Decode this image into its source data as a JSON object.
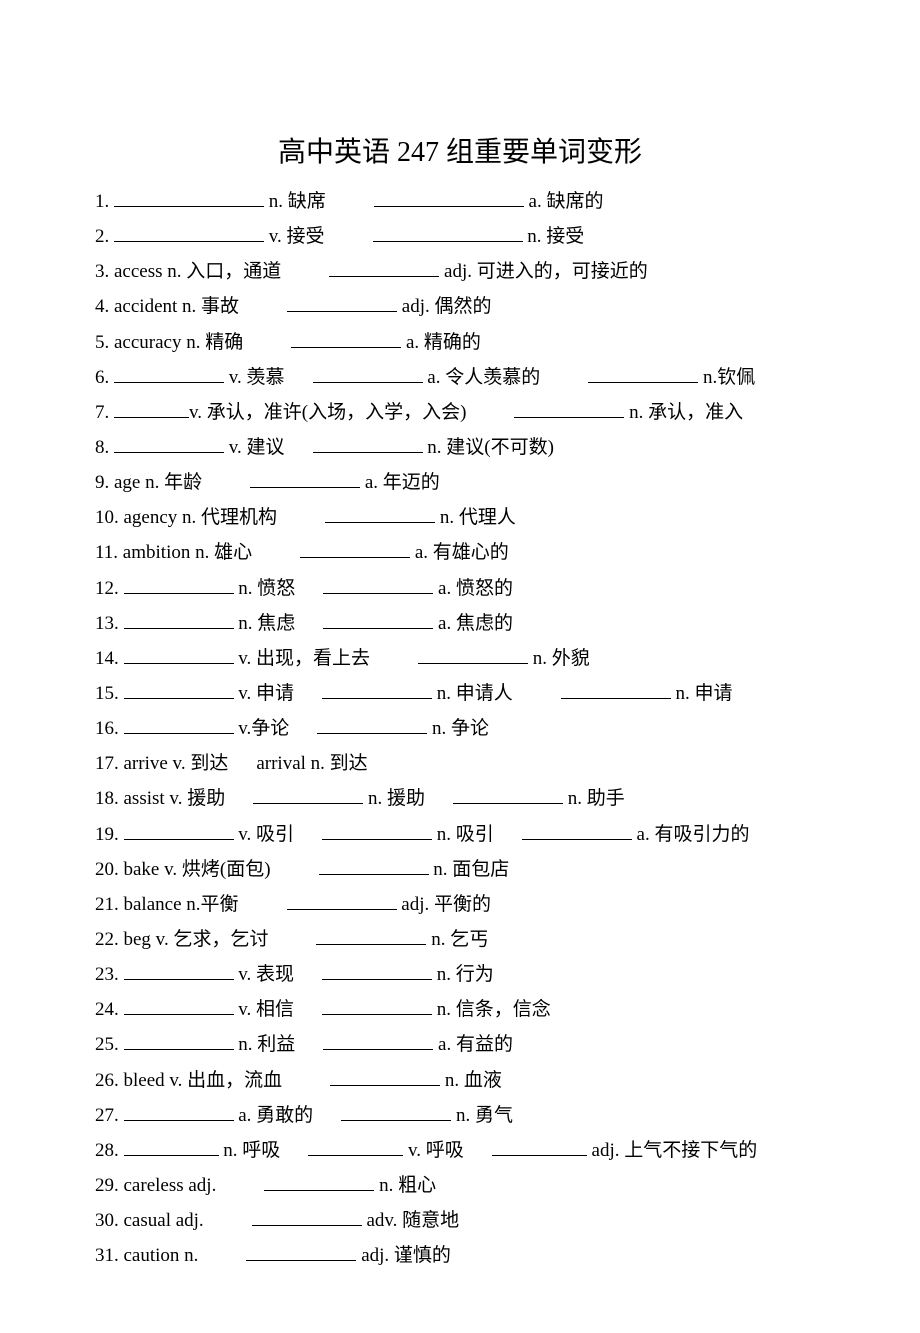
{
  "title": "高中英语 247 组重要单词变形",
  "lines": [
    {
      "num": "1.",
      "parts": [
        {
          "blank": "long"
        },
        {
          "t": " n. 缺席"
        },
        {
          "gap": "lg"
        },
        {
          "blank": "long"
        },
        {
          "t": " a. 缺席的"
        }
      ]
    },
    {
      "num": "2.",
      "parts": [
        {
          "blank": "long"
        },
        {
          "t": " v. 接受"
        },
        {
          "gap": "lg"
        },
        {
          "blank": "long"
        },
        {
          "t": " n. 接受"
        }
      ]
    },
    {
      "num": "3.",
      "parts": [
        {
          "t": "access n. 入口，通道"
        },
        {
          "gap": "lg"
        },
        {
          "blank": "med"
        },
        {
          "t": " adj. 可进入的，可接近的"
        }
      ]
    },
    {
      "num": "4.",
      "parts": [
        {
          "t": "accident n. 事故"
        },
        {
          "gap": "lg"
        },
        {
          "blank": "med"
        },
        {
          "t": " adj. 偶然的"
        }
      ]
    },
    {
      "num": "5.",
      "parts": [
        {
          "t": "accuracy n. 精确"
        },
        {
          "gap": "lg"
        },
        {
          "blank": "med"
        },
        {
          "t": " a. 精确的"
        }
      ]
    },
    {
      "num": "6.",
      "parts": [
        {
          "blank": "med"
        },
        {
          "t": " v. 羡慕"
        },
        {
          "gap": ""
        },
        {
          "blank": "med"
        },
        {
          "t": " a. 令人羡慕的"
        },
        {
          "gap": "lg"
        },
        {
          "blank": "med"
        },
        {
          "t": " n.钦佩"
        }
      ]
    },
    {
      "num": "7.",
      "parts": [
        {
          "blank": "xs"
        },
        {
          "t": "v. 承认，准许(入场，入学，入会)"
        },
        {
          "gap": "lg"
        },
        {
          "blank": "med"
        },
        {
          "t": " n. 承认，准入"
        }
      ]
    },
    {
      "num": "8.",
      "parts": [
        {
          "blank": "med"
        },
        {
          "t": " v. 建议"
        },
        {
          "gap": ""
        },
        {
          "blank": "med"
        },
        {
          "t": " n. 建议(不可数)"
        }
      ]
    },
    {
      "num": "9.",
      "parts": [
        {
          "t": "age n. 年龄"
        },
        {
          "gap": "lg"
        },
        {
          "blank": "med"
        },
        {
          "t": " a. 年迈的"
        }
      ]
    },
    {
      "num": "10.",
      "parts": [
        {
          "t": "agency n. 代理机构"
        },
        {
          "gap": "lg"
        },
        {
          "blank": "med"
        },
        {
          "t": " n. 代理人"
        }
      ]
    },
    {
      "num": "11.",
      "parts": [
        {
          "t": "ambition n. 雄心"
        },
        {
          "gap": "lg"
        },
        {
          "blank": "med"
        },
        {
          "t": " a. 有雄心的"
        }
      ]
    },
    {
      "num": "12.",
      "parts": [
        {
          "blank": "med"
        },
        {
          "t": " n. 愤怒"
        },
        {
          "gap": ""
        },
        {
          "blank": "med"
        },
        {
          "t": " a. 愤怒的"
        }
      ]
    },
    {
      "num": "13.",
      "parts": [
        {
          "blank": "med"
        },
        {
          "t": " n. 焦虑"
        },
        {
          "gap": ""
        },
        {
          "blank": "med"
        },
        {
          "t": " a. 焦虑的"
        }
      ]
    },
    {
      "num": "14.",
      "parts": [
        {
          "blank": "med"
        },
        {
          "t": " v. 出现，看上去"
        },
        {
          "gap": "lg"
        },
        {
          "blank": "med"
        },
        {
          "t": " n. 外貌"
        }
      ]
    },
    {
      "num": "15.",
      "parts": [
        {
          "blank": "med"
        },
        {
          "t": " v. 申请"
        },
        {
          "gap": ""
        },
        {
          "blank": "med"
        },
        {
          "t": " n. 申请人"
        },
        {
          "gap": "lg"
        },
        {
          "blank": "med"
        },
        {
          "t": " n. 申请"
        }
      ]
    },
    {
      "num": "16.",
      "parts": [
        {
          "blank": "med"
        },
        {
          "t": " v.争论"
        },
        {
          "gap": ""
        },
        {
          "blank": "med"
        },
        {
          "t": " n. 争论"
        }
      ]
    },
    {
      "num": "17.",
      "parts": [
        {
          "t": "arrive v. 到达"
        },
        {
          "gap": ""
        },
        {
          "t": "arrival n. 到达"
        }
      ]
    },
    {
      "num": "18.",
      "parts": [
        {
          "t": "assist v. 援助"
        },
        {
          "gap": ""
        },
        {
          "blank": "med"
        },
        {
          "t": " n. 援助"
        },
        {
          "gap": ""
        },
        {
          "blank": "med"
        },
        {
          "t": " n. 助手"
        }
      ]
    },
    {
      "num": "19.",
      "parts": [
        {
          "blank": "med"
        },
        {
          "t": " v. 吸引"
        },
        {
          "gap": ""
        },
        {
          "blank": "med"
        },
        {
          "t": " n. 吸引"
        },
        {
          "gap": ""
        },
        {
          "blank": "med"
        },
        {
          "t": " a. 有吸引力的"
        }
      ]
    },
    {
      "num": "20.",
      "parts": [
        {
          "t": "bake v. 烘烤(面包)"
        },
        {
          "gap": "lg"
        },
        {
          "blank": "med"
        },
        {
          "t": " n. 面包店"
        }
      ]
    },
    {
      "num": "21.",
      "parts": [
        {
          "t": "balance n.平衡"
        },
        {
          "gap": "lg"
        },
        {
          "blank": "med"
        },
        {
          "t": " adj. 平衡的"
        }
      ]
    },
    {
      "num": "22.",
      "parts": [
        {
          "t": "beg v. 乞求，乞讨"
        },
        {
          "gap": "lg"
        },
        {
          "blank": "med"
        },
        {
          "t": " n. 乞丐"
        }
      ]
    },
    {
      "num": "23.",
      "parts": [
        {
          "blank": "med"
        },
        {
          "t": " v. 表现"
        },
        {
          "gap": ""
        },
        {
          "blank": "med"
        },
        {
          "t": " n. 行为"
        }
      ]
    },
    {
      "num": "24.",
      "parts": [
        {
          "blank": "med"
        },
        {
          "t": " v. 相信"
        },
        {
          "gap": ""
        },
        {
          "blank": "med"
        },
        {
          "t": " n. 信条，信念"
        }
      ]
    },
    {
      "num": "25.",
      "parts": [
        {
          "blank": "med"
        },
        {
          "t": " n. 利益"
        },
        {
          "gap": ""
        },
        {
          "blank": "med"
        },
        {
          "t": " a. 有益的"
        }
      ]
    },
    {
      "num": "26.",
      "parts": [
        {
          "t": "bleed v. 出血，流血"
        },
        {
          "gap": "lg"
        },
        {
          "blank": "med"
        },
        {
          "t": " n. 血液"
        }
      ]
    },
    {
      "num": "27.",
      "parts": [
        {
          "blank": "med"
        },
        {
          "t": " a. 勇敢的"
        },
        {
          "gap": ""
        },
        {
          "blank": "med"
        },
        {
          "t": " n. 勇气"
        }
      ]
    },
    {
      "num": "28.",
      "parts": [
        {
          "blank": "sm"
        },
        {
          "t": " n. 呼吸"
        },
        {
          "gap": ""
        },
        {
          "blank": "sm"
        },
        {
          "t": " v. 呼吸"
        },
        {
          "gap": ""
        },
        {
          "blank": "sm"
        },
        {
          "t": " adj. 上气不接下气的"
        }
      ]
    },
    {
      "num": "29.",
      "parts": [
        {
          "t": "careless adj."
        },
        {
          "gap": "lg"
        },
        {
          "blank": "med"
        },
        {
          "t": " n. 粗心"
        }
      ]
    },
    {
      "num": "30.",
      "parts": [
        {
          "t": "casual adj."
        },
        {
          "gap": "lg"
        },
        {
          "blank": "med"
        },
        {
          "t": " adv. 随意地"
        }
      ]
    },
    {
      "num": "31.",
      "parts": [
        {
          "t": "caution n."
        },
        {
          "gap": "lg"
        },
        {
          "blank": "med"
        },
        {
          "t": " adj. 谨慎的"
        }
      ]
    }
  ],
  "colors": {
    "text": "#000000",
    "background": "#ffffff"
  },
  "typography": {
    "title_fontsize": 28,
    "body_fontsize": 19,
    "line_height": 1.85,
    "font_family": "SimSun"
  }
}
